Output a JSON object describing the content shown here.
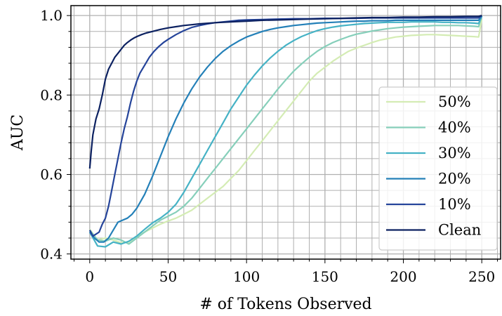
{
  "chart_data": {
    "type": "line",
    "xlabel": "# of Tokens Observed",
    "ylabel": "AUC",
    "xlim": [
      -12,
      262
    ],
    "ylim": [
      0.387,
      1.025
    ],
    "x_ticks": [
      0,
      50,
      100,
      150,
      200,
      250
    ],
    "x_tick_labels": [
      "0",
      "50",
      "100",
      "150",
      "200",
      "250"
    ],
    "y_ticks": [
      0.4,
      0.6,
      0.8,
      1.0
    ],
    "y_tick_labels": [
      "0.4",
      "0.6",
      "0.8",
      "1.0"
    ],
    "x_minor_step": 10,
    "y_minor_step": 0.04,
    "grid": true,
    "legend_position": "lower-right",
    "series": [
      {
        "name": "50%",
        "color": "#d4ecb4",
        "x": [
          0,
          5,
          10,
          15,
          20,
          25,
          30,
          35,
          40,
          45,
          50,
          55,
          60,
          65,
          70,
          75,
          80,
          85,
          90,
          95,
          100,
          105,
          110,
          115,
          120,
          125,
          130,
          135,
          140,
          145,
          150,
          155,
          160,
          165,
          170,
          175,
          180,
          185,
          190,
          195,
          200,
          205,
          210,
          215,
          220,
          225,
          230,
          235,
          240,
          245,
          248,
          250
        ],
        "y": [
          0.462,
          0.435,
          0.44,
          0.435,
          0.428,
          0.43,
          0.445,
          0.455,
          0.465,
          0.475,
          0.483,
          0.49,
          0.5,
          0.51,
          0.525,
          0.54,
          0.555,
          0.57,
          0.59,
          0.61,
          0.635,
          0.66,
          0.685,
          0.71,
          0.735,
          0.76,
          0.785,
          0.81,
          0.835,
          0.855,
          0.87,
          0.885,
          0.898,
          0.91,
          0.918,
          0.925,
          0.932,
          0.938,
          0.942,
          0.946,
          0.948,
          0.95,
          0.951,
          0.952,
          0.952,
          0.951,
          0.95,
          0.949,
          0.948,
          0.947,
          0.946,
          0.99
        ]
      },
      {
        "name": "40%",
        "color": "#86cfba",
        "x": [
          0,
          5,
          10,
          15,
          20,
          25,
          30,
          35,
          40,
          45,
          50,
          55,
          60,
          65,
          70,
          75,
          80,
          85,
          90,
          95,
          100,
          105,
          110,
          115,
          120,
          125,
          130,
          135,
          140,
          145,
          150,
          155,
          160,
          165,
          170,
          175,
          180,
          185,
          190,
          195,
          200,
          205,
          210,
          215,
          220,
          225,
          230,
          235,
          240,
          245,
          248,
          250
        ],
        "y": [
          0.46,
          0.435,
          0.432,
          0.44,
          0.435,
          0.425,
          0.44,
          0.455,
          0.47,
          0.485,
          0.495,
          0.505,
          0.52,
          0.54,
          0.565,
          0.59,
          0.615,
          0.64,
          0.665,
          0.69,
          0.715,
          0.74,
          0.765,
          0.79,
          0.815,
          0.838,
          0.86,
          0.878,
          0.895,
          0.91,
          0.922,
          0.932,
          0.94,
          0.947,
          0.953,
          0.957,
          0.961,
          0.964,
          0.967,
          0.969,
          0.971,
          0.972,
          0.973,
          0.974,
          0.975,
          0.975,
          0.975,
          0.975,
          0.974,
          0.973,
          0.972,
          0.998
        ]
      },
      {
        "name": "30%",
        "color": "#45b2c5",
        "x": [
          0,
          5,
          10,
          15,
          20,
          25,
          30,
          35,
          40,
          45,
          50,
          55,
          60,
          65,
          70,
          75,
          80,
          85,
          90,
          95,
          100,
          105,
          110,
          115,
          120,
          125,
          130,
          135,
          140,
          145,
          150,
          155,
          160,
          165,
          170,
          175,
          180,
          185,
          190,
          195,
          200,
          205,
          210,
          215,
          220,
          225,
          230,
          235,
          240,
          245,
          248,
          250
        ],
        "y": [
          0.455,
          0.42,
          0.418,
          0.43,
          0.425,
          0.432,
          0.445,
          0.462,
          0.478,
          0.49,
          0.505,
          0.525,
          0.555,
          0.59,
          0.625,
          0.66,
          0.695,
          0.73,
          0.765,
          0.795,
          0.825,
          0.85,
          0.873,
          0.893,
          0.91,
          0.925,
          0.937,
          0.947,
          0.955,
          0.962,
          0.967,
          0.971,
          0.974,
          0.976,
          0.978,
          0.98,
          0.981,
          0.982,
          0.983,
          0.983,
          0.983,
          0.984,
          0.984,
          0.984,
          0.984,
          0.983,
          0.983,
          0.982,
          0.982,
          0.981,
          0.98,
          0.999
        ]
      },
      {
        "name": "20%",
        "color": "#2480b8",
        "x": [
          0,
          3,
          6,
          9,
          12,
          15,
          18,
          21,
          24,
          27,
          30,
          35,
          40,
          45,
          50,
          55,
          60,
          65,
          70,
          75,
          80,
          85,
          90,
          95,
          100,
          105,
          110,
          115,
          120,
          125,
          130,
          135,
          140,
          145,
          150,
          155,
          160,
          165,
          170,
          175,
          180,
          185,
          190,
          195,
          200,
          205,
          210,
          215,
          220,
          225,
          230,
          235,
          240,
          245,
          248,
          250
        ],
        "y": [
          0.455,
          0.44,
          0.43,
          0.43,
          0.44,
          0.46,
          0.48,
          0.485,
          0.49,
          0.5,
          0.515,
          0.55,
          0.595,
          0.645,
          0.695,
          0.74,
          0.78,
          0.815,
          0.845,
          0.87,
          0.892,
          0.91,
          0.924,
          0.936,
          0.946,
          0.953,
          0.96,
          0.965,
          0.969,
          0.972,
          0.975,
          0.977,
          0.979,
          0.981,
          0.982,
          0.983,
          0.984,
          0.985,
          0.986,
          0.986,
          0.987,
          0.987,
          0.987,
          0.988,
          0.988,
          0.988,
          0.988,
          0.988,
          0.988,
          0.988,
          0.988,
          0.988,
          0.988,
          0.988,
          0.988,
          0.999
        ]
      },
      {
        "name": "10%",
        "color": "#25449a",
        "x": [
          0,
          2,
          4,
          6,
          8,
          10,
          12,
          14,
          16,
          18,
          20,
          22,
          24,
          26,
          28,
          30,
          32,
          35,
          38,
          41,
          44,
          47,
          50,
          55,
          60,
          65,
          70,
          75,
          80,
          85,
          90,
          95,
          100,
          110,
          120,
          130,
          140,
          150,
          160,
          170,
          180,
          190,
          200,
          210,
          220,
          230,
          240,
          245,
          248,
          250
        ],
        "y": [
          0.46,
          0.445,
          0.45,
          0.455,
          0.475,
          0.49,
          0.52,
          0.56,
          0.6,
          0.64,
          0.68,
          0.715,
          0.745,
          0.78,
          0.81,
          0.835,
          0.855,
          0.875,
          0.895,
          0.91,
          0.922,
          0.932,
          0.94,
          0.952,
          0.962,
          0.97,
          0.975,
          0.979,
          0.982,
          0.984,
          0.986,
          0.988,
          0.989,
          0.99,
          0.991,
          0.992,
          0.992,
          0.993,
          0.993,
          0.993,
          0.994,
          0.994,
          0.994,
          0.994,
          0.994,
          0.994,
          0.994,
          0.994,
          0.994,
          1.0
        ]
      },
      {
        "name": "Clean",
        "color": "#0c2161",
        "x": [
          0,
          1,
          2,
          3,
          4,
          6,
          8,
          10,
          12,
          14,
          16,
          18,
          20,
          22,
          24,
          26,
          28,
          30,
          33,
          36,
          40,
          45,
          50,
          55,
          60,
          65,
          70,
          80,
          90,
          100,
          110,
          120,
          130,
          140,
          150,
          160,
          170,
          180,
          190,
          200,
          210,
          220,
          230,
          240,
          245,
          248,
          250
        ],
        "y": [
          0.615,
          0.66,
          0.7,
          0.72,
          0.74,
          0.765,
          0.8,
          0.84,
          0.865,
          0.88,
          0.895,
          0.905,
          0.915,
          0.925,
          0.932,
          0.938,
          0.943,
          0.947,
          0.952,
          0.956,
          0.96,
          0.965,
          0.969,
          0.972,
          0.975,
          0.977,
          0.979,
          0.982,
          0.984,
          0.986,
          0.988,
          0.989,
          0.99,
          0.991,
          0.992,
          0.993,
          0.994,
          0.995,
          0.995,
          0.996,
          0.996,
          0.997,
          0.997,
          0.998,
          0.998,
          0.998,
          1.0
        ]
      }
    ]
  }
}
